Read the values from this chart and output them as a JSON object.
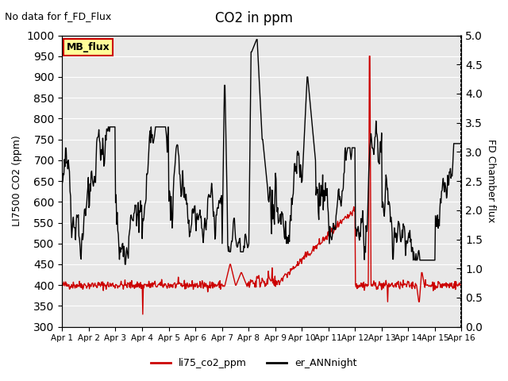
{
  "title": "CO2 in ppm",
  "top_left_text": "No data for f_FD_Flux",
  "ylabel_left": "LI7500 CO2 (ppm)",
  "ylabel_right": "FD Chamber flux",
  "xlim": [
    0,
    15
  ],
  "ylim_left": [
    300,
    1000
  ],
  "ylim_right": [
    0.0,
    5.0
  ],
  "xtick_labels": [
    "Apr 1",
    "Apr 2",
    "Apr 3",
    "Apr 4",
    "Apr 5",
    "Apr 6",
    "Apr 7",
    "Apr 8",
    "Apr 9",
    "Apr 10",
    "Apr 11",
    "Apr 12",
    "Apr 13",
    "Apr 14",
    "Apr 15",
    "Apr 16"
  ],
  "ytick_left": [
    300,
    350,
    400,
    450,
    500,
    550,
    600,
    650,
    700,
    750,
    800,
    850,
    900,
    950,
    1000
  ],
  "ytick_right": [
    0.0,
    0.5,
    1.0,
    1.5,
    2.0,
    2.5,
    3.0,
    3.5,
    4.0,
    4.5,
    5.0
  ],
  "background_color": "#e8e8e8",
  "line1_color": "#cc0000",
  "line2_color": "#000000",
  "legend_label1": "li75_co2_ppm",
  "legend_label2": "er_ANNnight",
  "mb_flux_box_color": "#ffff99",
  "mb_flux_border_color": "#cc0000",
  "mb_flux_text": "MB_flux"
}
